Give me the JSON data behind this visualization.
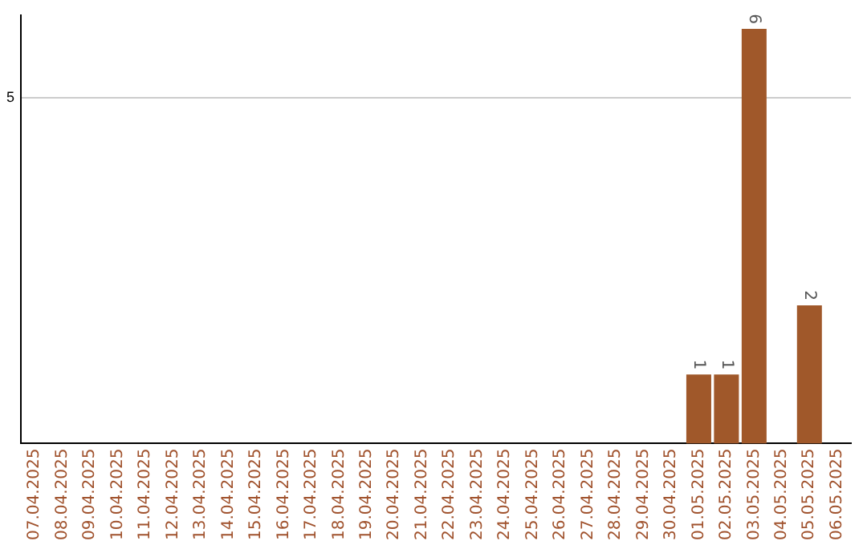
{
  "chart_data": {
    "type": "bar",
    "categories": [
      "07.04.2025",
      "08.04.2025",
      "09.04.2025",
      "10.04.2025",
      "11.04.2025",
      "12.04.2025",
      "13.04.2025",
      "14.04.2025",
      "15.04.2025",
      "16.04.2025",
      "17.04.2025",
      "18.04.2025",
      "19.04.2025",
      "20.04.2025",
      "21.04.2025",
      "22.04.2025",
      "23.04.2025",
      "24.04.2025",
      "25.04.2025",
      "26.04.2025",
      "27.04.2025",
      "28.04.2025",
      "29.04.2025",
      "30.04.2025",
      "01.05.2025",
      "02.05.2025",
      "03.05.2025",
      "04.05.2025",
      "05.05.2025",
      "06.05.2025"
    ],
    "values": [
      null,
      null,
      null,
      null,
      null,
      null,
      null,
      null,
      null,
      null,
      null,
      null,
      null,
      null,
      null,
      null,
      null,
      null,
      null,
      null,
      null,
      null,
      null,
      null,
      1,
      1,
      6,
      null,
      2,
      null
    ],
    "data_labels": true,
    "color": "#a0582a",
    "ylim": [
      0,
      6.2
    ],
    "yticks": [
      5
    ],
    "grid": "y",
    "legend": false
  }
}
